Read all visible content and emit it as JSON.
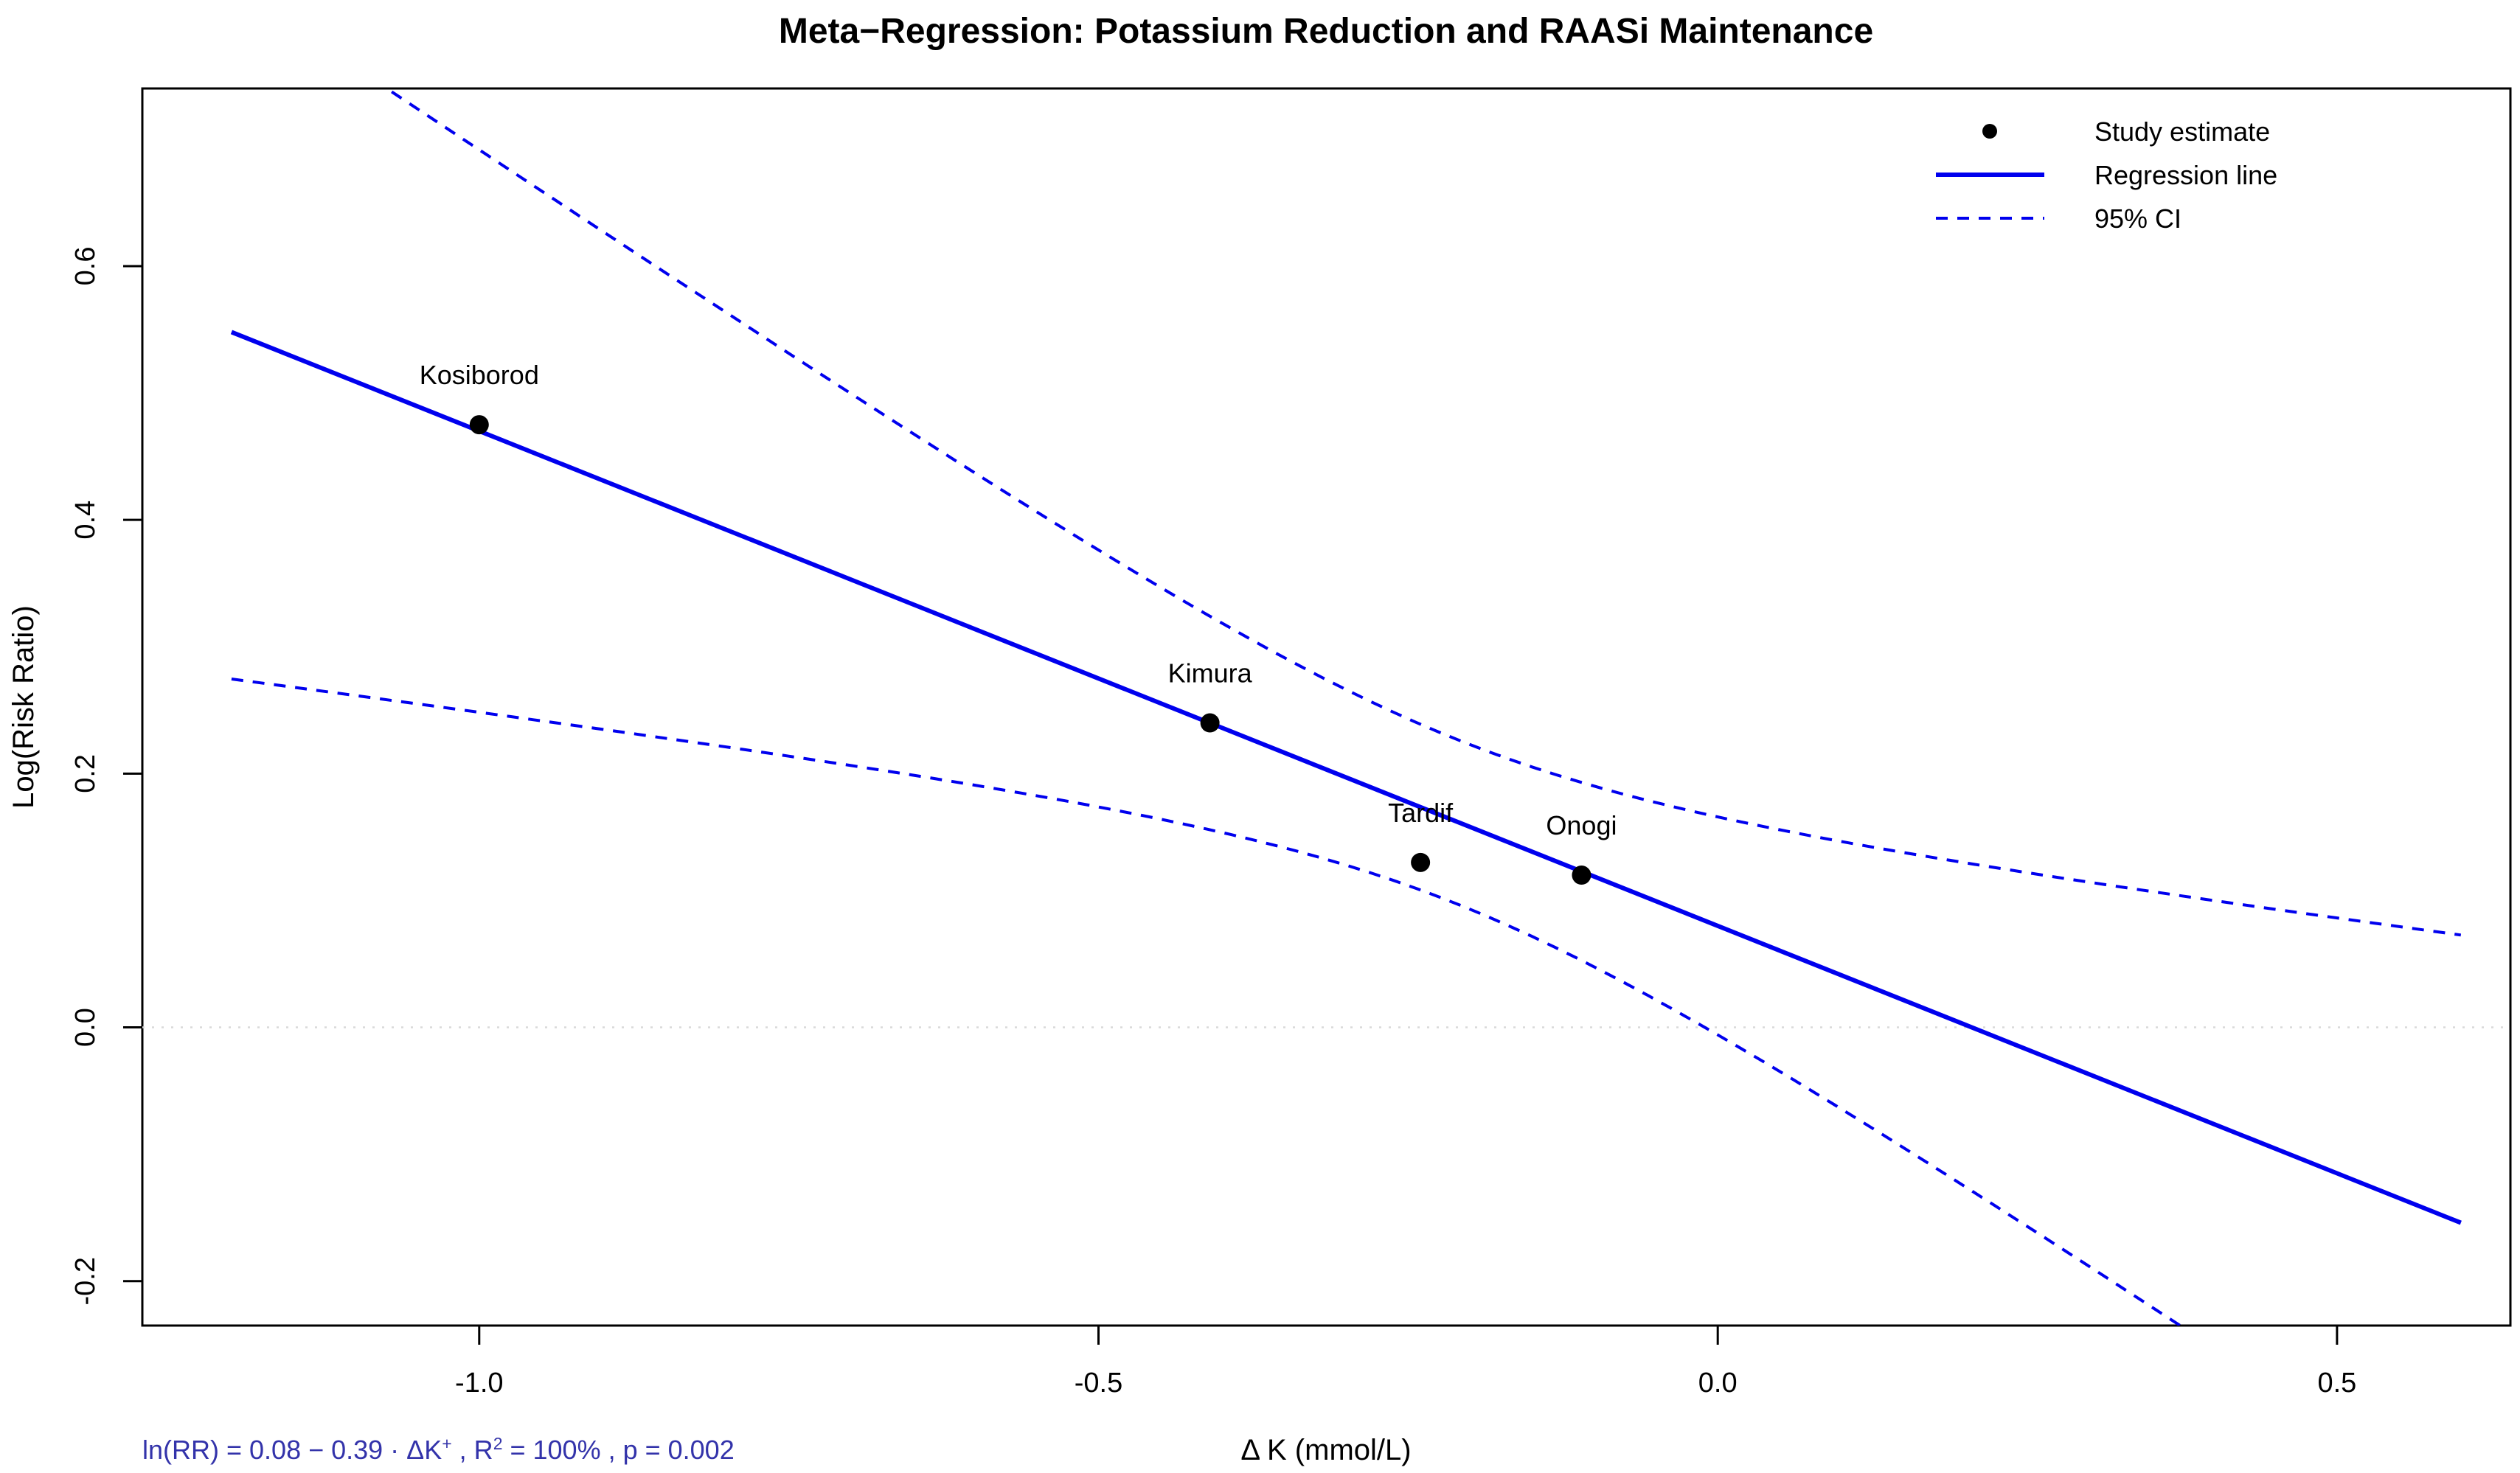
{
  "chart_data": {
    "type": "scatter",
    "title": "Meta−Regression: Potassium Reduction and RAASi Maintenance",
    "xlabel": "Δ K (mmol/L)",
    "ylabel": "Log(Risk Ratio)",
    "xlim": [
      -1.272,
      0.64
    ],
    "ylim": [
      -0.235,
      0.74
    ],
    "grid": "off",
    "x_ticks": [
      {
        "v": -1.0,
        "label": "-1.0"
      },
      {
        "v": -0.5,
        "label": "-0.5"
      },
      {
        "v": 0.0,
        "label": "0.0"
      },
      {
        "v": 0.5,
        "label": "0.5"
      }
    ],
    "y_ticks": [
      {
        "v": -0.2,
        "label": "-0.2"
      },
      {
        "v": 0.0,
        "label": "0.0"
      },
      {
        "v": 0.2,
        "label": "0.2"
      },
      {
        "v": 0.4,
        "label": "0.4"
      },
      {
        "v": 0.6,
        "label": "0.6"
      }
    ],
    "points": [
      {
        "label": "Kosiborod",
        "x": -1.0,
        "y": 0.475
      },
      {
        "label": "Kimura",
        "x": -0.41,
        "y": 0.24
      },
      {
        "label": "Tardif",
        "x": -0.24,
        "y": 0.13
      },
      {
        "label": "Onogi",
        "x": -0.11,
        "y": 0.12
      }
    ],
    "regression": {
      "intercept": 0.08,
      "slope": -0.39,
      "x_start": -1.2,
      "x_end": 0.6
    },
    "ci": {
      "a": 0.0042,
      "b": 0.072,
      "xc": -0.21
    },
    "zero_line": {
      "y": 0.0
    },
    "legend": [
      {
        "label": "Study estimate",
        "marker": "point"
      },
      {
        "label": "Regression line",
        "marker": "solid-line"
      },
      {
        "label": "95% CI",
        "marker": "dashed-line"
      }
    ],
    "annotation": {
      "parts": [
        "ln(RR) = 0.08 − 0.39 · ΔK",
        "+",
        " , R",
        "2",
        " = 100% , p = 0.002"
      ]
    },
    "colors": {
      "line": "#0000EE",
      "ci": "#0000EE",
      "point": "#000000",
      "zero_line": "#D9D9D9",
      "annotation": "#3333AA",
      "axis": "#000000"
    }
  }
}
